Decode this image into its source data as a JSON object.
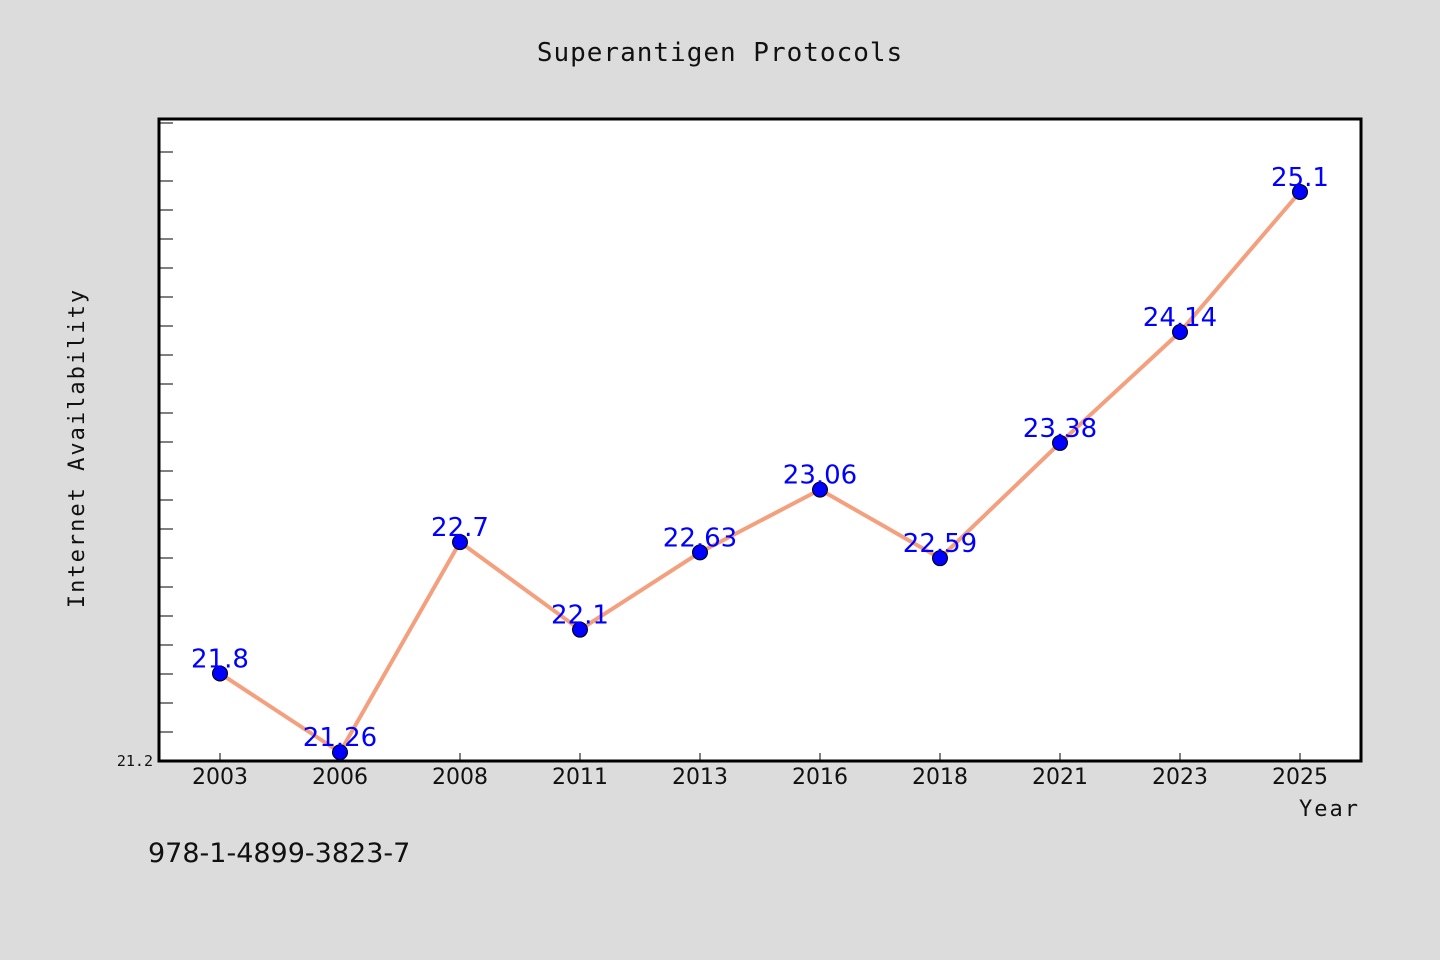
{
  "chart_data": {
    "type": "line",
    "title": "Superantigen Protocols",
    "xlabel": "Year",
    "ylabel": "Internet Availability",
    "categories": [
      "2003",
      "2006",
      "2008",
      "2011",
      "2013",
      "2016",
      "2018",
      "2021",
      "2023",
      "2025"
    ],
    "series": [
      {
        "values": [
          21.8,
          21.26,
          22.7,
          22.1,
          22.63,
          23.06,
          22.59,
          23.38,
          24.14,
          25.1
        ],
        "data_labels": [
          "21.8",
          "21.26",
          "22.7",
          "22.1",
          "22.63",
          "23.06",
          "22.59",
          "23.38",
          "24.14",
          "25.1"
        ]
      }
    ],
    "ylim": [
      21.2,
      25.6
    ],
    "y_tick_labels": [
      "21.2"
    ],
    "grid": false,
    "legend": "none",
    "colors": {
      "line": "#f4a07e",
      "marker": "#0000ff",
      "data_label": "#0000ff",
      "background": "#dcdcdc",
      "plot_background": "#ffffff"
    }
  },
  "footnote": "978-1-4899-3823-7"
}
